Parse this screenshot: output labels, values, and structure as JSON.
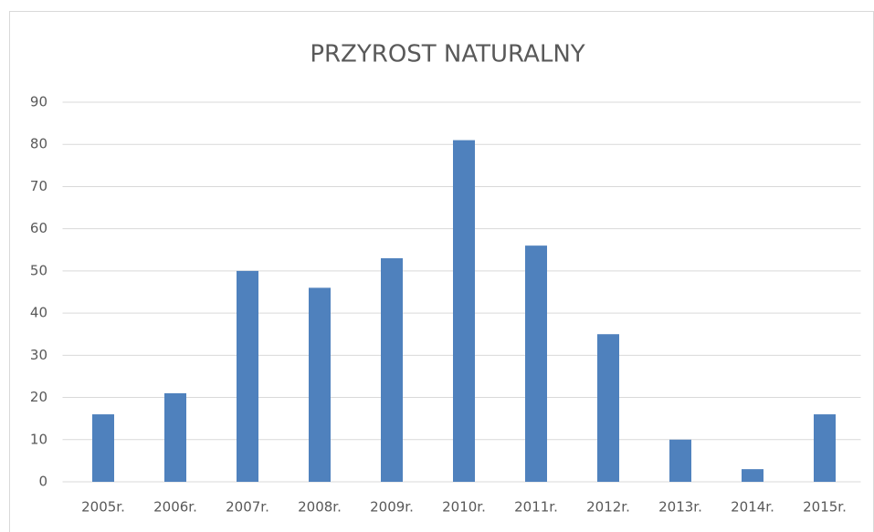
{
  "chart_data": {
    "type": "bar",
    "title": "PRZYROST NATURALNY",
    "categories": [
      "2005r.",
      "2006r.",
      "2007r.",
      "2008r.",
      "2009r.",
      "2010r.",
      "2011r.",
      "2012r.",
      "2013r.",
      "2014r.",
      "2015r."
    ],
    "values": [
      16,
      21,
      50,
      46,
      53,
      81,
      56,
      35,
      10,
      3,
      16
    ],
    "color": "#4f81bd",
    "ylim": [
      0,
      90
    ],
    "yticks": [
      0,
      10,
      20,
      30,
      40,
      50,
      60,
      70,
      80,
      90
    ],
    "grid": true
  }
}
